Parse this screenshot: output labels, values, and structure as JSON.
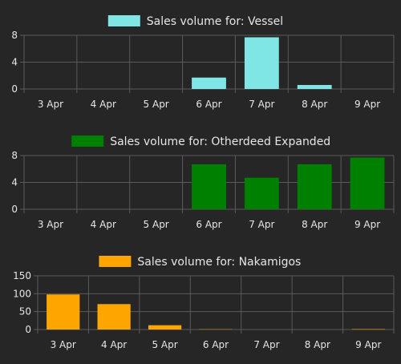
{
  "chart_data": [
    {
      "type": "bar",
      "categories": [
        "3 Apr",
        "4 Apr",
        "5 Apr",
        "6 Apr",
        "7 Apr",
        "8 Apr",
        "9 Apr"
      ],
      "series": [
        {
          "name": "Sales volume for: Vessel",
          "values": [
            0,
            0,
            0,
            1.7,
            7.7,
            0.6,
            0
          ]
        }
      ],
      "ylim": [
        0,
        8
      ],
      "yticks": [
        0,
        4,
        8
      ],
      "color": "#80e5e5",
      "grid": true,
      "legend": "top-center"
    },
    {
      "type": "bar",
      "categories": [
        "3 Apr",
        "4 Apr",
        "5 Apr",
        "6 Apr",
        "7 Apr",
        "8 Apr",
        "9 Apr"
      ],
      "series": [
        {
          "name": "Sales volume for: Otherdeed Expanded",
          "values": [
            0,
            0,
            0,
            6.7,
            4.7,
            6.7,
            7.7
          ]
        }
      ],
      "ylim": [
        0,
        8
      ],
      "yticks": [
        0,
        4,
        8
      ],
      "color": "#008000",
      "grid": true,
      "legend": "top-center"
    },
    {
      "type": "bar",
      "categories": [
        "3 Apr",
        "4 Apr",
        "5 Apr",
        "6 Apr",
        "7 Apr",
        "8 Apr",
        "9 Apr"
      ],
      "series": [
        {
          "name": "Sales volume for: Nakamigos",
          "values": [
            98,
            71,
            12,
            0.8,
            0,
            0,
            1.2
          ]
        }
      ],
      "ylim": [
        0,
        150
      ],
      "yticks": [
        0,
        50,
        100,
        150
      ],
      "color": "#ffa500",
      "grid": true,
      "legend": "top-center"
    }
  ]
}
